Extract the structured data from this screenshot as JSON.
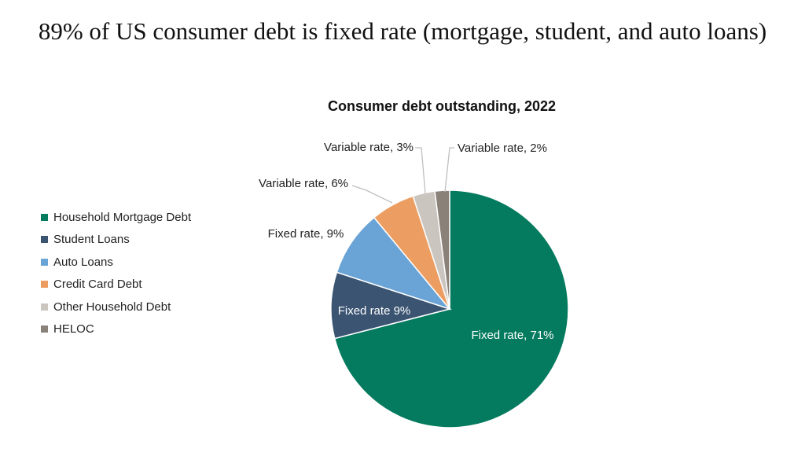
{
  "headline": "89% of US consumer debt is fixed rate (mortgage, student, and auto loans)",
  "chart_data": {
    "type": "pie",
    "title": "Consumer debt outstanding, 2022",
    "legend_position": "left",
    "start_angle_deg": 0,
    "direction": "clockwise",
    "slices": [
      {
        "category": "Household Mortgage Debt",
        "label": "Fixed rate, 71%",
        "value": 71,
        "color": "#047a5e"
      },
      {
        "category": "Student Loans",
        "label": "Fixed rate  9%",
        "value": 9,
        "color": "#3a5472"
      },
      {
        "category": "Auto Loans",
        "label": "Fixed rate, 9%",
        "value": 9,
        "color": "#6aa3d5"
      },
      {
        "category": "Credit Card Debt",
        "label": "Variable rate, 6%",
        "value": 6,
        "color": "#ec9d62"
      },
      {
        "category": "Other Household Debt",
        "label": "Variable rate, 3%",
        "value": 3,
        "color": "#cbc5bf"
      },
      {
        "category": "HELOC",
        "label": "Variable rate, 2%",
        "value": 2,
        "color": "#8a8279"
      }
    ]
  }
}
